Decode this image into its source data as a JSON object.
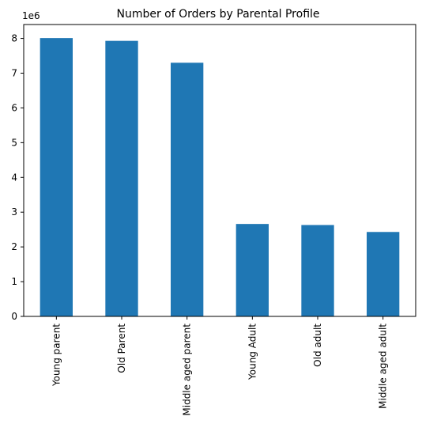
{
  "chart_data": {
    "type": "bar",
    "title": "Number of Orders by Parental Profile",
    "xlabel": "",
    "ylabel": "",
    "y_offset_label": "1e6",
    "categories": [
      "Young parent",
      "Old Parent",
      "Middle aged parent",
      "Young Adult",
      "Old adult",
      "Middle aged adult"
    ],
    "values": [
      8.01,
      7.93,
      7.3,
      2.66,
      2.63,
      2.43
    ],
    "value_scale": 1000000,
    "ylim": [
      0,
      8.4
    ],
    "yticks": [
      0,
      1,
      2,
      3,
      4,
      5,
      6,
      7,
      8
    ],
    "bar_color": "#1f77b4",
    "grid": false,
    "legend": "none"
  }
}
